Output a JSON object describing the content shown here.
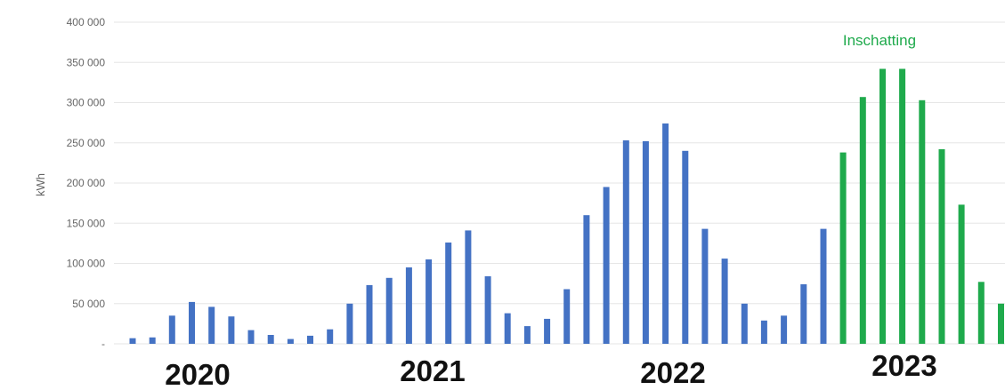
{
  "chart_data": {
    "type": "bar",
    "title": "",
    "xlabel": "",
    "ylabel": "kWh",
    "ylim": [
      0,
      400000
    ],
    "yticks": [
      "-",
      "50 000",
      "100 000",
      "150 000",
      "200 000",
      "250 000",
      "300 000",
      "350 000",
      "400 000"
    ],
    "grid": true,
    "colors": {
      "actual": "#4472C4",
      "estimate": "#1FAA4C"
    },
    "annotation": "Inschatting",
    "year_labels": [
      "2020",
      "2021",
      "2022",
      "2023"
    ],
    "values": [
      7000,
      8000,
      35000,
      52000,
      46000,
      34000,
      17000,
      11000,
      6000,
      10000,
      18000,
      50000,
      73000,
      82000,
      95000,
      105000,
      126000,
      141000,
      84000,
      38000,
      22000,
      31000,
      68000,
      160000,
      195000,
      253000,
      252000,
      274000,
      240000,
      143000,
      106000,
      50000,
      29000,
      35000,
      74000,
      143000,
      238000,
      307000,
      342000,
      342000,
      303000,
      242000,
      173000,
      77000,
      50000
    ],
    "estimate_start_index": 36
  }
}
